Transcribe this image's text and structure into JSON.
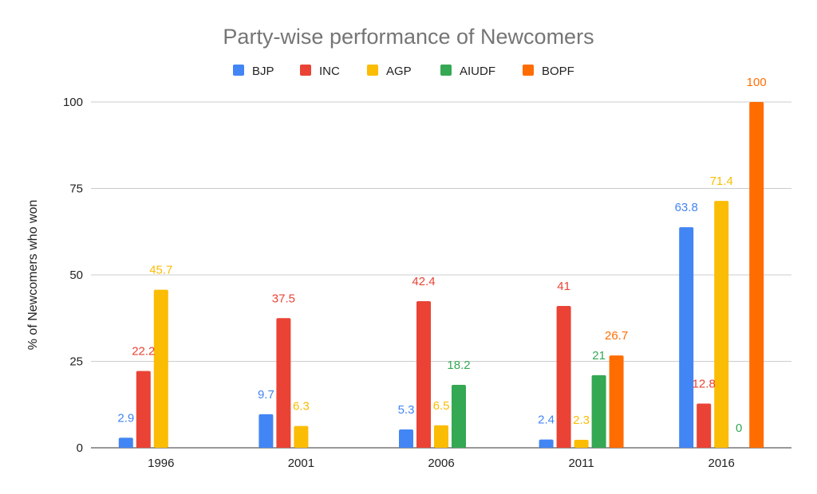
{
  "chart_data": {
    "type": "bar",
    "title": "Party-wise performance of Newcomers",
    "xlabel": "",
    "ylabel": "% of Newcomers who won",
    "categories": [
      "1996",
      "2001",
      "2006",
      "2011",
      "2016"
    ],
    "ylim": [
      0,
      100
    ],
    "yticks": [
      0,
      25,
      50,
      75,
      100
    ],
    "grid": true,
    "legend_position": "top",
    "series": [
      {
        "name": "BJP",
        "color": "#4285F4",
        "values": [
          2.9,
          9.7,
          5.3,
          2.4,
          63.8
        ]
      },
      {
        "name": "INC",
        "color": "#EA4335",
        "values": [
          22.2,
          37.5,
          42.4,
          41,
          12.8
        ]
      },
      {
        "name": "AGP",
        "color": "#FBBC04",
        "values": [
          45.7,
          6.3,
          6.5,
          2.3,
          71.4
        ]
      },
      {
        "name": "AIUDF",
        "color": "#34A853",
        "values": [
          null,
          null,
          18.2,
          21,
          0
        ]
      },
      {
        "name": "BOPF",
        "color": "#FF6D01",
        "values": [
          null,
          null,
          null,
          26.7,
          100
        ]
      }
    ]
  }
}
